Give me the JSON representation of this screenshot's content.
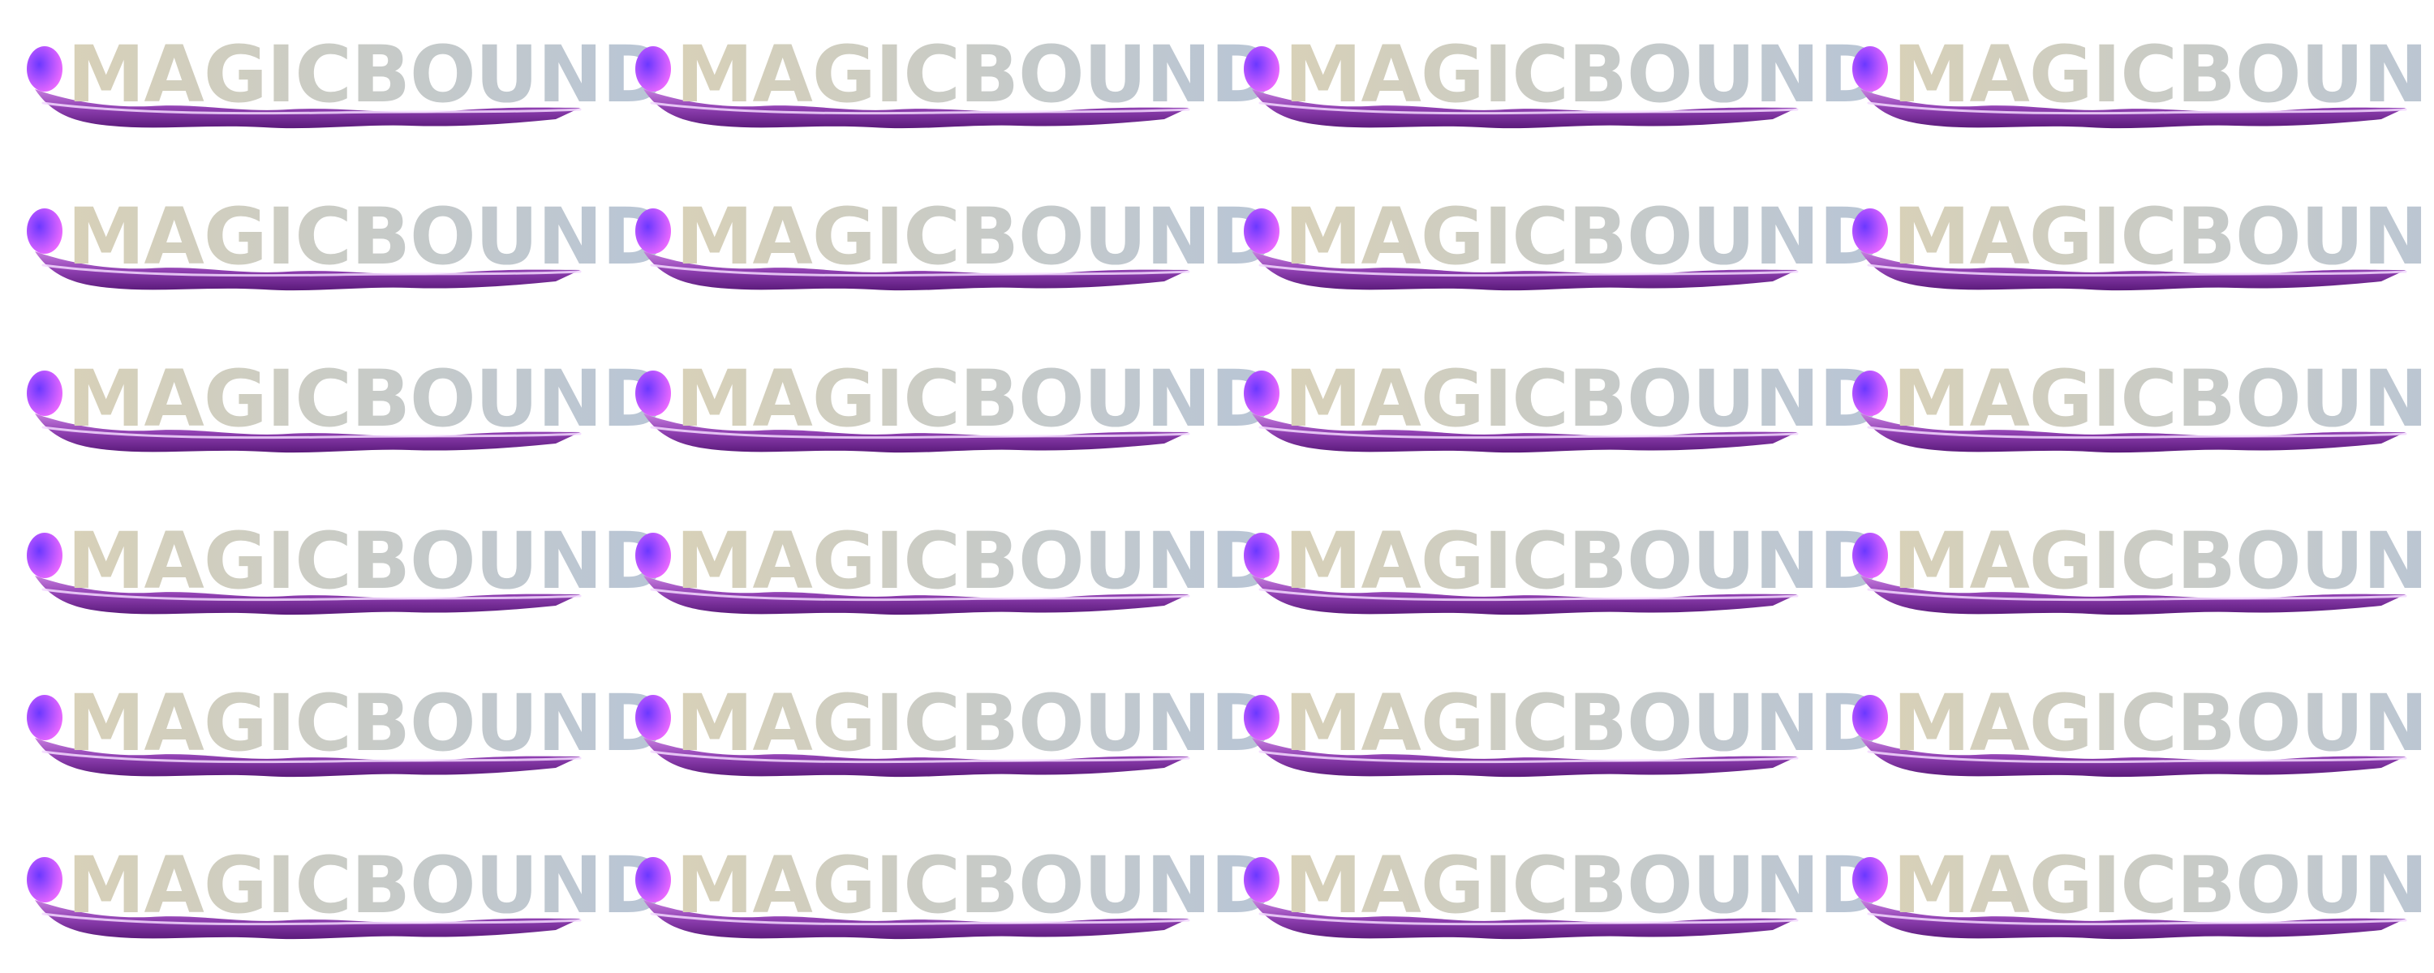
{
  "sheet": {
    "layout": "grid",
    "rows": 6,
    "columns": 4,
    "background": "#ffffff"
  },
  "logo": {
    "wordmark": "MAGICBOUND",
    "text_gradient": [
      "#d8d1b8",
      "#b8c5d6"
    ],
    "ribbon_colors": [
      "#5a1a7a",
      "#8e3fb0",
      "#c77ee0"
    ],
    "ribbon_highlight": "#f3d9ff",
    "orb_colors": [
      "#6b38ff",
      "#f06bff"
    ]
  },
  "icons": {
    "orb": "magic-orb-icon",
    "ribbon": "purple-ribbon-icon"
  }
}
